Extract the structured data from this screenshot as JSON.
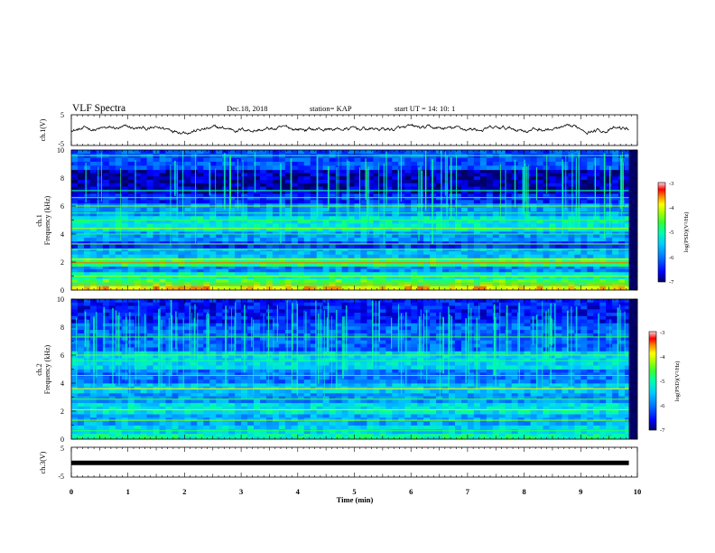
{
  "header": {
    "title": "VLF Spectra",
    "date": "Dec.18, 2018",
    "station": "station= KAP",
    "start": "start  UT =   14: 10: 1"
  },
  "colors": {
    "waveform": "#000000",
    "colormap": [
      "#000066",
      "#0000ff",
      "#0077ff",
      "#00ccff",
      "#00ffaa",
      "#33ff33",
      "#aaff00",
      "#ffff00",
      "#ff8800",
      "#ff0000",
      "#ffdddd"
    ]
  },
  "chart_data": [
    {
      "type": "line",
      "name": "ch1-waveform",
      "ylabel": "ch.1(V)",
      "ylim": [
        -5,
        5
      ],
      "yticks": [
        "5",
        "-5"
      ],
      "x_range": [
        0,
        9.85
      ],
      "mean": 0.3,
      "amplitude_range": [
        -1.6,
        1.9
      ]
    },
    {
      "type": "heatmap",
      "name": "ch1-spectrogram",
      "ylabel": "ch.1\nFrequency (kHz)",
      "xlim": [
        0,
        10
      ],
      "ylim": [
        0,
        10
      ],
      "yticks": [
        "0",
        "2",
        "4",
        "6",
        "8",
        "10"
      ],
      "colorbar": {
        "label": "log(PSD)(V²/Hz)",
        "range": [
          -7,
          -3
        ],
        "ticks": [
          "-3",
          "-4",
          "-5",
          "-6",
          "-7"
        ]
      },
      "bands": [
        {
          "f": [
            0.0,
            0.3
          ],
          "v": -3.8
        },
        {
          "f": [
            0.3,
            0.8
          ],
          "v": -4.6
        },
        {
          "f": [
            0.8,
            1.3
          ],
          "v": -5.1
        },
        {
          "f": [
            1.3,
            1.7
          ],
          "v": -5.9
        },
        {
          "f": [
            1.7,
            2.3
          ],
          "v": -4.8
        },
        {
          "f": [
            2.3,
            3.0
          ],
          "v": -5.6
        },
        {
          "f": [
            3.0,
            3.5
          ],
          "v": -6.3
        },
        {
          "f": [
            3.5,
            4.2
          ],
          "v": -5.8
        },
        {
          "f": [
            4.2,
            5.3
          ],
          "v": -5.2
        },
        {
          "f": [
            5.3,
            6.2
          ],
          "v": -5.8
        },
        {
          "f": [
            6.2,
            6.9
          ],
          "v": -6.4
        },
        {
          "f": [
            6.9,
            8.6
          ],
          "v": -6.8
        },
        {
          "f": [
            8.6,
            10.0
          ],
          "v": -6.2
        }
      ],
      "lines": [
        {
          "f": 0.45,
          "v": -3.6
        },
        {
          "f": 1.0,
          "v": -4.2
        },
        {
          "f": 1.95,
          "v": -3.5
        },
        {
          "f": 2.2,
          "v": -4.0
        },
        {
          "f": 2.9,
          "v": -4.6
        },
        {
          "f": 3.3,
          "v": -4.4
        },
        {
          "f": 4.0,
          "v": -4.8
        },
        {
          "f": 4.4,
          "v": -4.2
        },
        {
          "f": 5.0,
          "v": -4.6
        },
        {
          "f": 5.5,
          "v": -4.9
        },
        {
          "f": 6.0,
          "v": -4.3
        },
        {
          "f": 6.6,
          "v": -4.9
        },
        {
          "f": 7.1,
          "v": -5.0
        },
        {
          "f": 9.6,
          "v": -4.8
        }
      ],
      "spike_count": 70,
      "spike_level": -5.0
    },
    {
      "type": "heatmap",
      "name": "ch2-spectrogram",
      "ylabel": "ch.2\nFrequency (kHz)",
      "xlim": [
        0,
        10
      ],
      "ylim": [
        0,
        10
      ],
      "yticks": [
        "0",
        "2",
        "4",
        "6",
        "8",
        "10"
      ],
      "colorbar": {
        "label": "log(PSD)(V²/Hz)",
        "range": [
          -7,
          -3
        ],
        "ticks": [
          "-3",
          "-4",
          "-5",
          "-6",
          "-7"
        ]
      },
      "bands": [
        {
          "f": [
            0.0,
            0.4
          ],
          "v": -5.0
        },
        {
          "f": [
            0.4,
            1.0
          ],
          "v": -5.4
        },
        {
          "f": [
            1.0,
            1.8
          ],
          "v": -5.7
        },
        {
          "f": [
            1.8,
            2.6
          ],
          "v": -5.3
        },
        {
          "f": [
            2.6,
            3.3
          ],
          "v": -5.8
        },
        {
          "f": [
            3.3,
            4.0
          ],
          "v": -5.5
        },
        {
          "f": [
            4.0,
            5.0
          ],
          "v": -6.0
        },
        {
          "f": [
            5.0,
            6.3
          ],
          "v": -5.4
        },
        {
          "f": [
            6.3,
            8.3
          ],
          "v": -6.1
        },
        {
          "f": [
            8.3,
            10.0
          ],
          "v": -6.5
        }
      ],
      "lines": [
        {
          "f": 0.6,
          "v": -4.8
        },
        {
          "f": 1.35,
          "v": -4.4
        },
        {
          "f": 2.1,
          "v": -4.2
        },
        {
          "f": 2.85,
          "v": -4.6
        },
        {
          "f": 3.6,
          "v": -4.0
        },
        {
          "f": 4.55,
          "v": -4.8
        },
        {
          "f": 5.6,
          "v": -4.9
        },
        {
          "f": 6.0,
          "v": -4.4
        },
        {
          "f": 7.3,
          "v": -4.6
        }
      ],
      "spike_count": 120,
      "spike_level": -5.1
    },
    {
      "type": "line",
      "name": "ch3-waveform",
      "ylabel": "ch.3(V)",
      "ylim": [
        -5,
        5
      ],
      "yticks": [
        "5",
        "-5"
      ],
      "x_range": [
        0,
        9.85
      ],
      "value": -0.2,
      "xlabel": "Time (min)",
      "xlim": [
        0,
        10
      ],
      "xticks": [
        "0",
        "1",
        "2",
        "3",
        "4",
        "5",
        "6",
        "7",
        "8",
        "9",
        "10"
      ]
    }
  ]
}
